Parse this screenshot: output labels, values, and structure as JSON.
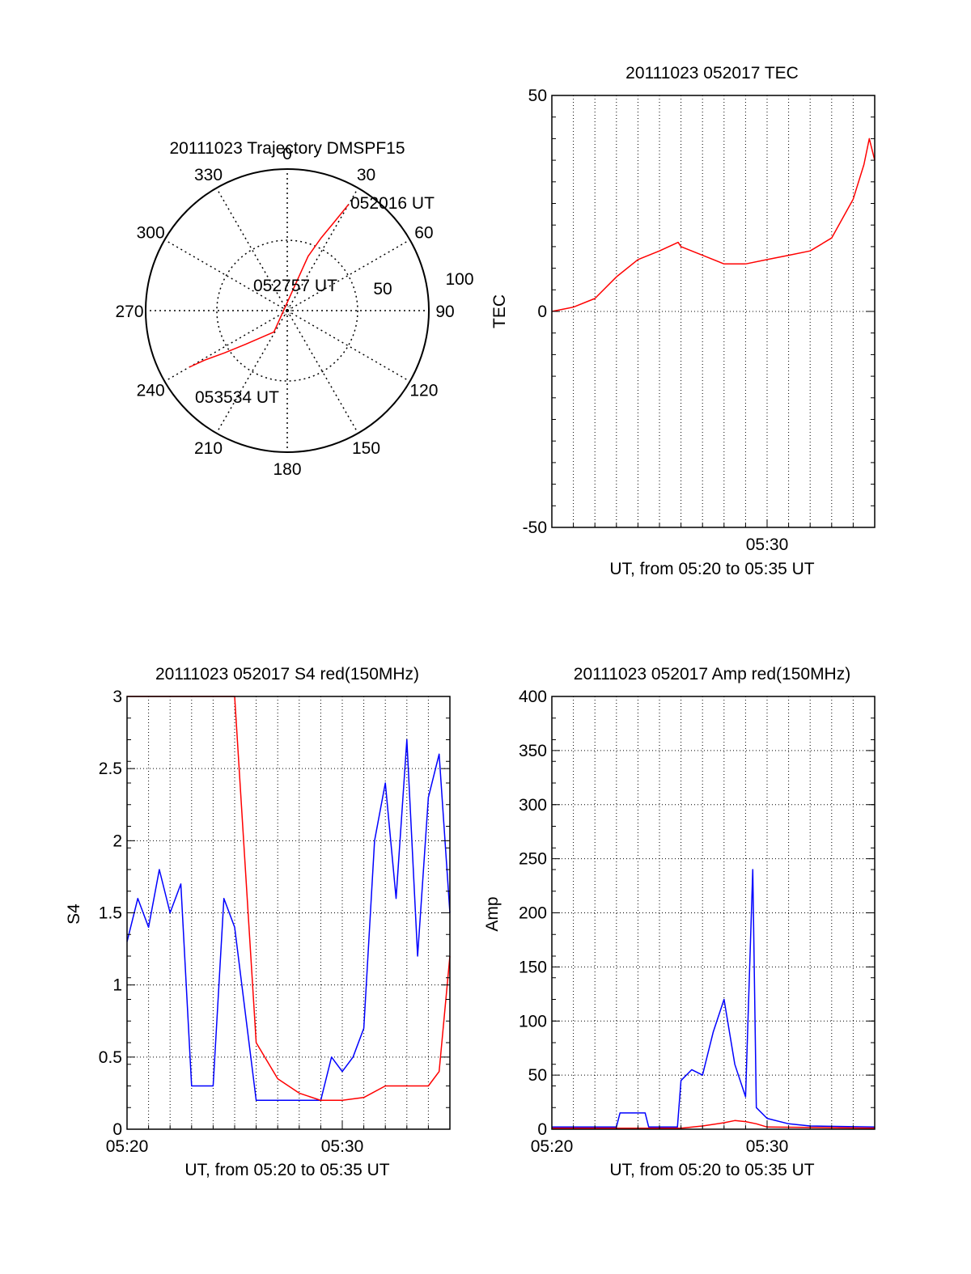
{
  "colors": {
    "red": "#ff0000",
    "blue": "#0000ff",
    "axis": "#000000"
  },
  "chart_data": [
    {
      "type": "polar",
      "title": "20111023 Trajectory DMSPF15",
      "angle_labels": [
        "0",
        "30",
        "60",
        "90",
        "120",
        "150",
        "180",
        "210",
        "240",
        "270",
        "300",
        "330"
      ],
      "radius_labels": [
        "50",
        "100"
      ],
      "grid": true,
      "series": [
        {
          "color": "red",
          "points": [
            {
              "az": 30,
              "el": 12
            },
            {
              "az": 28,
              "el": 26
            },
            {
              "az": 25,
              "el": 39
            },
            {
              "az": 21,
              "el": 53
            },
            {
              "az": 212,
              "el": 74
            },
            {
              "az": 231,
              "el": 56
            },
            {
              "az": 236,
              "el": 42
            },
            {
              "az": 239,
              "el": 29
            },
            {
              "az": 240,
              "el": 18
            }
          ]
        }
      ],
      "annotations": [
        {
          "text": "052016 UT",
          "az": 30
        },
        {
          "text": "052757 UT",
          "az": 0
        },
        {
          "text": "053534 UT",
          "az": 240
        }
      ]
    },
    {
      "type": "line",
      "title": "20111023 052017 TEC",
      "xlabel": "UT, from 05:20 to 05:35 UT",
      "ylabel": "TEC",
      "xlim": [
        "05:20",
        "05:35"
      ],
      "ylim": [
        -50,
        50
      ],
      "yticks": [
        -50,
        0,
        50
      ],
      "xticks": [
        "05:30"
      ],
      "grid": true,
      "series": [
        {
          "color": "red",
          "x": [
            "05:20",
            "05:21",
            "05:22",
            "05:23",
            "05:24",
            "05:25",
            "05:25:52",
            "05:26",
            "05:27",
            "05:28",
            "05:29",
            "05:30",
            "05:31",
            "05:32",
            "05:33",
            "05:34",
            "05:34:30",
            "05:34:45",
            "05:35"
          ],
          "y": [
            0,
            1,
            3,
            8,
            12,
            14,
            16,
            15,
            13,
            11,
            11,
            12,
            13,
            14,
            17,
            26,
            34,
            40,
            35
          ]
        }
      ]
    },
    {
      "type": "line",
      "title": "20111023 052017 S4 red(150MHz)",
      "xlabel": "UT, from 05:20 to 05:35 UT",
      "ylabel": "S4",
      "xlim": [
        "05:20",
        "05:35"
      ],
      "ylim": [
        0,
        3
      ],
      "yticks": [
        0,
        0.5,
        1,
        1.5,
        2,
        2.5,
        3
      ],
      "xticks": [
        "05:20",
        "05:30"
      ],
      "grid": true,
      "series": [
        {
          "color": "blue",
          "x": [
            "05:20",
            "05:20:30",
            "05:21",
            "05:21:30",
            "05:22",
            "05:22:30",
            "05:23",
            "05:23:30",
            "05:24",
            "05:24:30",
            "05:25",
            "05:26",
            "05:27",
            "05:28",
            "05:29",
            "05:29:30",
            "05:30",
            "05:30:30",
            "05:31",
            "05:31:30",
            "05:32",
            "05:32:30",
            "05:33",
            "05:33:30",
            "05:34",
            "05:34:30",
            "05:35"
          ],
          "y": [
            1.3,
            1.6,
            1.4,
            1.8,
            1.5,
            1.7,
            0.3,
            0.3,
            0.3,
            1.6,
            1.4,
            0.2,
            0.2,
            0.2,
            0.2,
            0.5,
            0.4,
            0.5,
            0.7,
            2.0,
            2.4,
            1.6,
            2.7,
            1.2,
            2.3,
            2.6,
            1.5
          ]
        },
        {
          "color": "red",
          "x": [
            "05:20",
            "05:21",
            "05:22",
            "05:23",
            "05:24",
            "05:25",
            "05:26",
            "05:27",
            "05:28",
            "05:29",
            "05:30",
            "05:31",
            "05:32",
            "05:33",
            "05:34",
            "05:34:30",
            "05:35"
          ],
          "y": [
            3.0,
            3.0,
            3.0,
            3.0,
            3.0,
            3.0,
            0.6,
            0.35,
            0.25,
            0.2,
            0.2,
            0.22,
            0.3,
            0.3,
            0.3,
            0.4,
            1.2
          ]
        }
      ]
    },
    {
      "type": "line",
      "title": "20111023 052017 Amp red(150MHz)",
      "xlabel": "UT, from 05:20 to 05:35 UT",
      "ylabel": "Amp",
      "xlim": [
        "05:20",
        "05:35"
      ],
      "ylim": [
        0,
        400
      ],
      "yticks": [
        0,
        50,
        100,
        150,
        200,
        250,
        300,
        350,
        400
      ],
      "xticks": [
        "05:20",
        "05:30"
      ],
      "grid": true,
      "series": [
        {
          "color": "blue",
          "x": [
            "05:20",
            "05:23",
            "05:23:10",
            "05:24:20",
            "05:24:30",
            "05:25:50",
            "05:26",
            "05:26:30",
            "05:27",
            "05:27:30",
            "05:28",
            "05:28:30",
            "05:29",
            "05:29:20",
            "05:29:30",
            "05:30",
            "05:31",
            "05:32",
            "05:35"
          ],
          "y": [
            2,
            2,
            15,
            15,
            2,
            2,
            45,
            55,
            50,
            90,
            120,
            60,
            30,
            240,
            20,
            10,
            5,
            3,
            2
          ]
        },
        {
          "color": "red",
          "x": [
            "05:20",
            "05:26",
            "05:27",
            "05:28",
            "05:28:30",
            "05:29",
            "05:29:30",
            "05:30",
            "05:35"
          ],
          "y": [
            1,
            1,
            3,
            6,
            8,
            7,
            5,
            2,
            1
          ]
        }
      ]
    }
  ]
}
